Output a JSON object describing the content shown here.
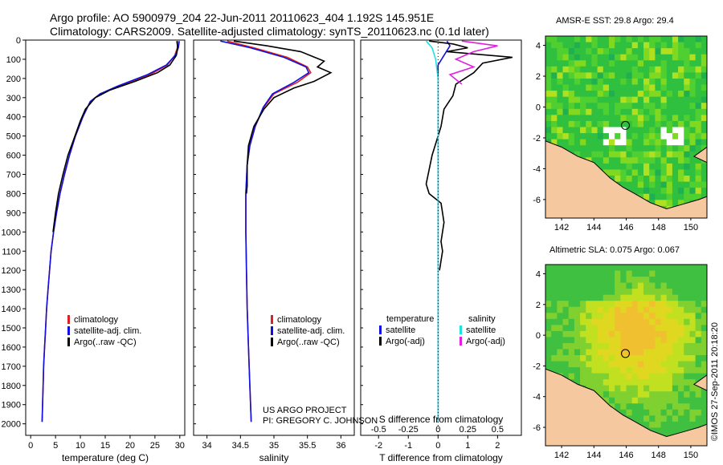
{
  "header": {
    "line1": "Argo profile: AO 5900979_204 22-Jun-2011 20110623_404 1.192S 145.951E",
    "line2": "Climatology: CARS2009. Satellite-adjusted climatology: synTS_20110623.nc (0.1d later)"
  },
  "side_label": "©IMOS 27-Sep-2011 20:18:20",
  "colors": {
    "red": "#e02020",
    "blue": "#1010e0",
    "black": "#000000",
    "cyan": "#20e0e0",
    "magenta": "#e020e0",
    "land": "#f5c8a0",
    "ocean_green": "#40c040"
  },
  "chart_data": [
    {
      "id": "temperature",
      "type": "line",
      "xlabel": "temperature (deg C)",
      "ylabel": "",
      "xlim": [
        -1,
        31
      ],
      "ylim": [
        2060,
        0
      ],
      "xticks": [
        0,
        5,
        10,
        15,
        20,
        25,
        30
      ],
      "xtick_labels": [
        "0",
        "5",
        "10",
        "15",
        "20",
        "25",
        "30"
      ],
      "yticks": [
        0,
        100,
        200,
        300,
        400,
        500,
        600,
        700,
        800,
        900,
        1000,
        1100,
        1200,
        1300,
        1400,
        1500,
        1600,
        1700,
        1800,
        1900,
        2000
      ],
      "ytick_labels": [
        "0",
        "100",
        "200",
        "300",
        "400",
        "500",
        "600",
        "700",
        "800",
        "900",
        "1000",
        "1100",
        "1200",
        "1300",
        "1400",
        "1500",
        "1600",
        "1700",
        "1800",
        "1900",
        "2000"
      ],
      "legend": [
        {
          "name": "climatology",
          "color": "#e02020"
        },
        {
          "name": "satellite-adj. clim.",
          "color": "#1010e0"
        },
        {
          "name": "Argo(..raw -QC)",
          "color": "#000000"
        }
      ],
      "series": [
        {
          "name": "climatology",
          "color": "#e02020",
          "points": [
            [
              29.6,
              5
            ],
            [
              29.5,
              40
            ],
            [
              29,
              80
            ],
            [
              27.5,
              130
            ],
            [
              24,
              180
            ],
            [
              18,
              240
            ],
            [
              14,
              280
            ],
            [
              12,
              320
            ],
            [
              10.5,
              400
            ],
            [
              9,
              500
            ],
            [
              7.8,
              600
            ],
            [
              6.8,
              700
            ],
            [
              5.9,
              800
            ],
            [
              5.2,
              900
            ],
            [
              4.6,
              1000
            ],
            [
              4.1,
              1100
            ],
            [
              3.8,
              1200
            ],
            [
              3.5,
              1300
            ],
            [
              3.2,
              1400
            ],
            [
              3,
              1500
            ],
            [
              2.8,
              1600
            ],
            [
              2.6,
              1700
            ],
            [
              2.5,
              1800
            ],
            [
              2.4,
              1900
            ],
            [
              2.3,
              1990
            ]
          ]
        },
        {
          "name": "satellite-adj. clim.",
          "color": "#1010e0",
          "points": [
            [
              29.9,
              5
            ],
            [
              29.7,
              40
            ],
            [
              29.1,
              80
            ],
            [
              27.3,
              130
            ],
            [
              23.5,
              180
            ],
            [
              17.5,
              240
            ],
            [
              14,
              280
            ],
            [
              12,
              320
            ],
            [
              10.5,
              400
            ],
            [
              9,
              500
            ],
            [
              7.8,
              600
            ],
            [
              6.8,
              700
            ],
            [
              5.9,
              800
            ],
            [
              5.2,
              900
            ],
            [
              4.6,
              1000
            ],
            [
              4.1,
              1100
            ],
            [
              3.8,
              1200
            ],
            [
              3.5,
              1300
            ],
            [
              3.2,
              1400
            ],
            [
              3,
              1500
            ],
            [
              2.8,
              1600
            ],
            [
              2.6,
              1700
            ],
            [
              2.5,
              1800
            ],
            [
              2.4,
              1900
            ],
            [
              2.3,
              1990
            ]
          ]
        },
        {
          "name": "Argo(..raw -QC)",
          "color": "#000000",
          "points": [
            [
              29.4,
              5
            ],
            [
              29.6,
              40
            ],
            [
              29.3,
              80
            ],
            [
              28,
              130
            ],
            [
              25.5,
              170
            ],
            [
              21,
              215
            ],
            [
              16,
              260
            ],
            [
              13,
              300
            ],
            [
              11,
              360
            ],
            [
              10,
              420
            ],
            [
              8.9,
              500
            ],
            [
              7.5,
              600
            ],
            [
              6.5,
              700
            ],
            [
              5.6,
              800
            ],
            [
              5,
              900
            ],
            [
              4.5,
              1000
            ]
          ]
        }
      ]
    },
    {
      "id": "salinity",
      "type": "line",
      "xlabel": "salinity",
      "ylabel": "",
      "xlim": [
        33.8,
        36.2
      ],
      "ylim": [
        2060,
        0
      ],
      "xticks": [
        34,
        34.5,
        35,
        35.5,
        36
      ],
      "xtick_labels": [
        "34",
        "34.5",
        "35",
        "35.5",
        "36"
      ],
      "legend": [
        {
          "name": "climatology",
          "color": "#e02020"
        },
        {
          "name": "satellite-adj. clim.",
          "color": "#1010e0"
        },
        {
          "name": "Argo(..raw -QC)",
          "color": "#000000"
        }
      ],
      "annotation": [
        "US ARGO PROJECT",
        "PI: GREGORY C. JOHNSON"
      ],
      "series": [
        {
          "name": "climatology",
          "color": "#e02020",
          "points": [
            [
              34.3,
              5
            ],
            [
              34.7,
              40
            ],
            [
              35.2,
              90
            ],
            [
              35.5,
              140
            ],
            [
              35.55,
              170
            ],
            [
              35.35,
              220
            ],
            [
              35,
              280
            ],
            [
              34.85,
              350
            ],
            [
              34.72,
              450
            ],
            [
              34.64,
              550
            ],
            [
              34.6,
              650
            ],
            [
              34.58,
              800
            ],
            [
              34.58,
              1000
            ],
            [
              34.59,
              1200
            ],
            [
              34.6,
              1400
            ],
            [
              34.62,
              1600
            ],
            [
              34.64,
              1800
            ],
            [
              34.66,
              1990
            ]
          ]
        },
        {
          "name": "satellite-adj. clim.",
          "color": "#1010e0",
          "points": [
            [
              34.2,
              5
            ],
            [
              34.65,
              40
            ],
            [
              35.15,
              90
            ],
            [
              35.48,
              140
            ],
            [
              35.52,
              170
            ],
            [
              35.3,
              220
            ],
            [
              34.98,
              280
            ],
            [
              34.84,
              350
            ],
            [
              34.72,
              450
            ],
            [
              34.64,
              550
            ],
            [
              34.6,
              650
            ],
            [
              34.58,
              800
            ],
            [
              34.58,
              1000
            ],
            [
              34.59,
              1200
            ],
            [
              34.6,
              1400
            ],
            [
              34.62,
              1600
            ],
            [
              34.64,
              1800
            ],
            [
              34.66,
              1990
            ]
          ]
        },
        {
          "name": "Argo(..raw -QC)",
          "color": "#000000",
          "points": [
            [
              34.4,
              5
            ],
            [
              34.9,
              30
            ],
            [
              35.4,
              60
            ],
            [
              35.75,
              110
            ],
            [
              35.65,
              140
            ],
            [
              35.85,
              170
            ],
            [
              35.6,
              215
            ],
            [
              35.3,
              250
            ],
            [
              35,
              300
            ],
            [
              34.85,
              360
            ],
            [
              34.7,
              450
            ],
            [
              34.62,
              550
            ],
            [
              34.6,
              650
            ],
            [
              34.6,
              760
            ],
            [
              34.59,
              800
            ]
          ]
        }
      ]
    },
    {
      "id": "difference",
      "type": "line",
      "xlabel": "T difference from climatology",
      "x2label": "S difference from climatology",
      "xlim": [
        -2.6,
        2.8
      ],
      "ylim": [
        2060,
        0
      ],
      "xticks": [
        -2,
        -1,
        0,
        1,
        2
      ],
      "xtick_labels": [
        "-2",
        "-1",
        "0",
        "1",
        "2"
      ],
      "x2ticks": [
        -0.5,
        -0.25,
        0,
        0.25,
        0.5
      ],
      "x2tick_labels": [
        "-0.5",
        "-0.25",
        "0",
        "0.25",
        "0.5"
      ],
      "legend_title_left": "temperature",
      "legend_title_right": "salinity",
      "legend": [
        {
          "name": "satellite",
          "color": "#1010e0"
        },
        {
          "name": "Argo(-adj)",
          "color": "#000000"
        },
        {
          "name": "satellite",
          "color": "#20e0e0"
        },
        {
          "name": "Argo(-adj)",
          "color": "#e020e0"
        }
      ],
      "series": [
        {
          "name": "T satellite",
          "color": "#1010e0",
          "points": [
            [
              0.3,
              5
            ],
            [
              0.4,
              30
            ],
            [
              0.2,
              80
            ],
            [
              0,
              130
            ],
            [
              0,
              200
            ],
            [
              0,
              300
            ],
            [
              0,
              500
            ],
            [
              0,
              800
            ],
            [
              0,
              1200
            ],
            [
              0,
              1600
            ],
            [
              0,
              1990
            ]
          ]
        },
        {
          "name": "T Argo(-adj)",
          "color": "#000000",
          "points": [
            [
              -0.3,
              5
            ],
            [
              0.5,
              20
            ],
            [
              1,
              40
            ],
            [
              0.3,
              60
            ],
            [
              2.5,
              90
            ],
            [
              1.5,
              120
            ],
            [
              1.2,
              170
            ],
            [
              0.6,
              230
            ],
            [
              0.5,
              290
            ],
            [
              0.2,
              360
            ],
            [
              0.1,
              450
            ],
            [
              -0.2,
              600
            ],
            [
              -0.4,
              750
            ],
            [
              -0.3,
              800
            ],
            [
              0.1,
              850
            ],
            [
              0.2,
              950
            ],
            [
              0.1,
              1050
            ],
            [
              0.15,
              1100
            ],
            [
              0.05,
              1200
            ]
          ]
        },
        {
          "name": "S satellite",
          "color": "#20e0e0",
          "points": [
            [
              -0.1,
              5
            ],
            [
              -0.05,
              40
            ],
            [
              -0.02,
              100
            ],
            [
              0,
              200
            ],
            [
              0,
              400
            ],
            [
              0,
              800
            ],
            [
              0,
              1200
            ],
            [
              0,
              1990
            ]
          ]
        },
        {
          "name": "S Argo(-adj)",
          "color": "#e020e0",
          "points": [
            [
              0.2,
              5
            ],
            [
              0.5,
              30
            ],
            [
              0.3,
              60
            ],
            [
              0.15,
              100
            ],
            [
              0.3,
              140
            ],
            [
              0.1,
              180
            ],
            [
              0.2,
              230
            ]
          ]
        }
      ]
    },
    {
      "id": "sst_map",
      "type": "heatmap",
      "title": "AMSR-E SST: 29.8 Argo: 29.4",
      "xlim": [
        141,
        151
      ],
      "ylim": [
        -7.2,
        4.6
      ],
      "xticks": [
        142,
        144,
        146,
        148,
        150
      ],
      "xtick_labels": [
        "142",
        "144",
        "146",
        "148",
        "150"
      ],
      "yticks": [
        -6,
        -4,
        -2,
        0,
        2,
        4
      ],
      "ytick_labels": [
        "-6",
        "-4",
        "-2",
        "0",
        "2",
        "4"
      ],
      "marker": {
        "lon": 145.951,
        "lat": -1.192
      }
    },
    {
      "id": "sla_map",
      "type": "heatmap",
      "title": "Altimetric SLA: 0.075 Argo: 0.067",
      "xlim": [
        141,
        151
      ],
      "ylim": [
        -7.2,
        4.6
      ],
      "xticks": [
        142,
        144,
        146,
        148,
        150
      ],
      "xtick_labels": [
        "142",
        "144",
        "146",
        "148",
        "150"
      ],
      "yticks": [
        -6,
        -4,
        -2,
        0,
        2,
        4
      ],
      "ytick_labels": [
        "-6",
        "-4",
        "-2",
        "0",
        "2",
        "4"
      ],
      "marker": {
        "lon": 145.951,
        "lat": -1.192
      }
    }
  ]
}
